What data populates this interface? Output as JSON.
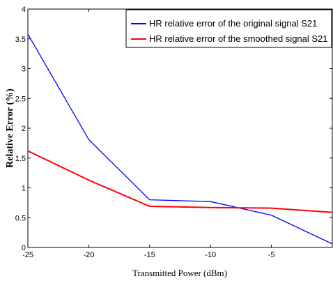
{
  "chart_data": {
    "type": "line",
    "title": "",
    "xlabel": "Transmitted Power (dBm)",
    "ylabel": "Relative Error (%)",
    "xlim": [
      -25,
      0
    ],
    "ylim": [
      0,
      4
    ],
    "x_ticks": [
      -25,
      -20,
      -15,
      -10,
      -5
    ],
    "y_ticks": [
      0,
      0.5,
      1,
      1.5,
      2,
      2.5,
      3,
      3.5,
      4
    ],
    "grid": false,
    "legend_position": "top-right",
    "series": [
      {
        "name": "HR relative error of the original signal S21",
        "color": "#0000ff",
        "x": [
          -25,
          -20,
          -15,
          -10,
          -5,
          0
        ],
        "y": [
          3.58,
          1.81,
          0.8,
          0.77,
          0.54,
          0.06
        ]
      },
      {
        "name": "HR relative error of the smoothed signal S21",
        "color": "#ff0000",
        "x": [
          -25,
          -20,
          -15,
          -10,
          -5,
          0
        ],
        "y": [
          1.62,
          1.13,
          0.69,
          0.67,
          0.66,
          0.59
        ]
      }
    ]
  }
}
